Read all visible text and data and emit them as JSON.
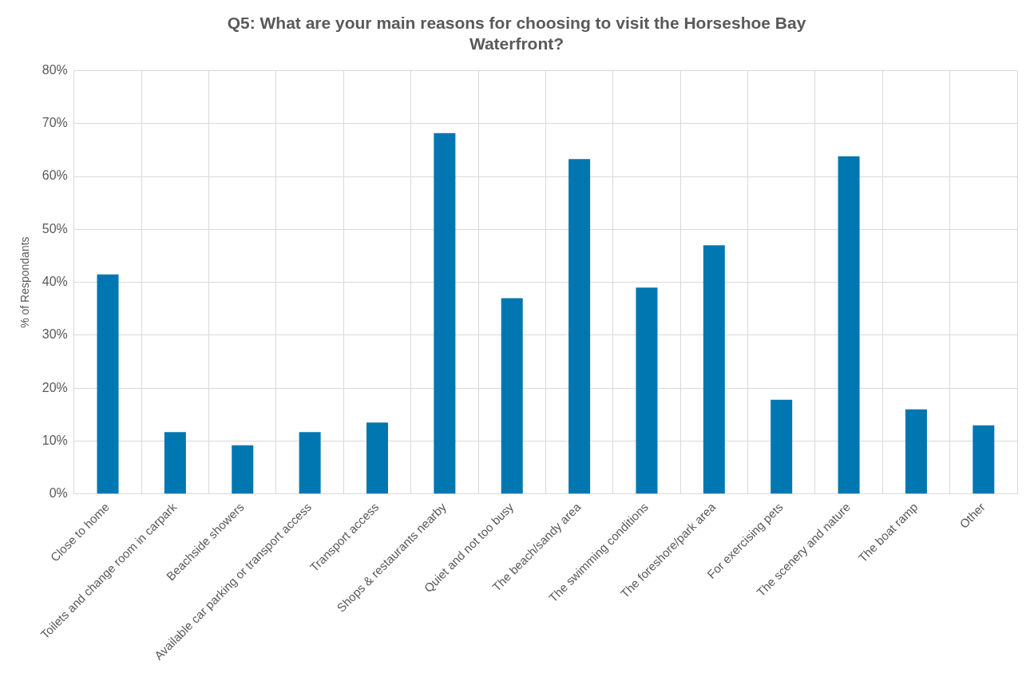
{
  "chart_data": {
    "type": "bar",
    "title": "Q5: What are your main reasons for choosing to visit the Horseshoe Bay Waterfront?",
    "ylabel": "% of Respondants",
    "categories": [
      "Close to home",
      "Toilets and change room in carpark",
      "Beachside showers",
      "Available car parking or transport access",
      "Transport access",
      "Shops & restaurants nearby",
      "Quiet and not too busy",
      "The beach/sandy area",
      "The swimming conditions",
      "The foreshore/park area",
      "For exercising pets",
      "The scenery and nature",
      "The boat ramp",
      "Other"
    ],
    "values": [
      41.5,
      11.7,
      9.2,
      11.7,
      13.5,
      68.2,
      37,
      63.3,
      39,
      47,
      17.8,
      63.8,
      16,
      13
    ],
    "color": "#0077b0",
    "ylim": [
      0,
      80
    ],
    "yticks": [
      {
        "value": 0,
        "label": "0%"
      },
      {
        "value": 10,
        "label": "10%"
      },
      {
        "value": 20,
        "label": "20%"
      },
      {
        "value": 30,
        "label": "30%"
      },
      {
        "value": 40,
        "label": "40%"
      },
      {
        "value": 50,
        "label": "50%"
      },
      {
        "value": 60,
        "label": "60%"
      },
      {
        "value": 70,
        "label": "70%"
      },
      {
        "value": 80,
        "label": "80%"
      }
    ],
    "grid": true,
    "legend": false
  }
}
